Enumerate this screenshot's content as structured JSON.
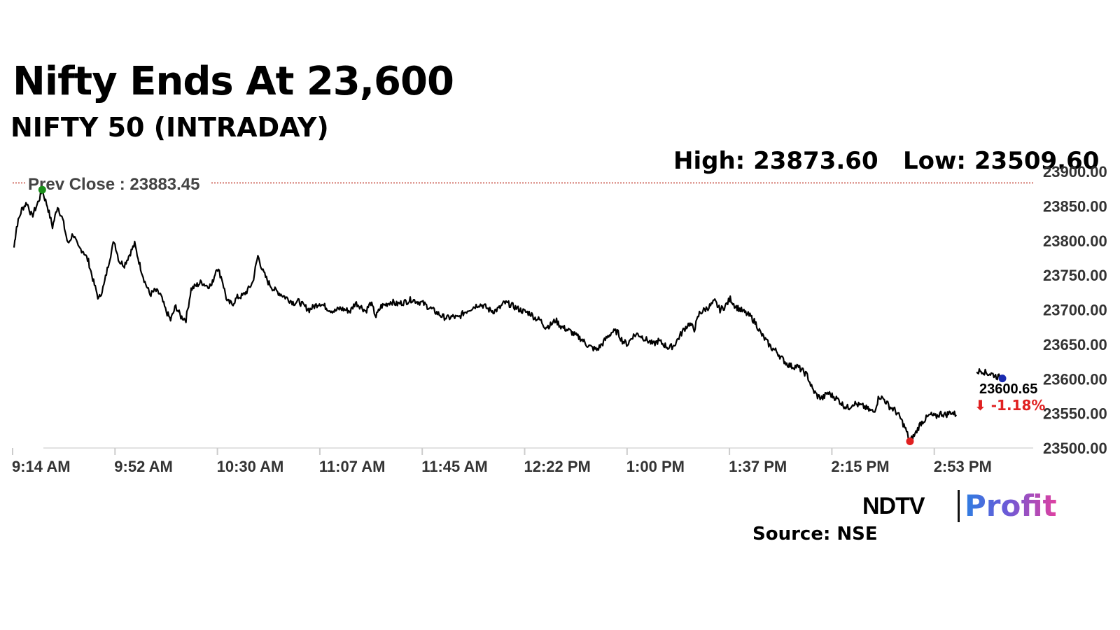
{
  "header": {
    "title": "Nifty Ends At 23,600",
    "subtitle": "NIFTY 50 (INTRADAY)",
    "high_label": "High: 23873.60",
    "low_label": "Low: 23509.60"
  },
  "footer": {
    "brand_ndtv": "NDTV",
    "brand_profit": "Profit",
    "source": "Source: NSE"
  },
  "colors": {
    "line": "#000000",
    "prev_close": "#c0392b",
    "high_marker": "#1a8f1a",
    "low_marker": "#e02020",
    "last_marker": "#1a2bb0",
    "change": "#e02020"
  },
  "chart_data": {
    "type": "line",
    "title": "NIFTY 50 (INTRADAY)",
    "x_ticks": [
      "9:14 AM",
      "9:52 AM",
      "10:30 AM",
      "11:07 AM",
      "11:45 AM",
      "12:22 PM",
      "1:00 PM",
      "1:37 PM",
      "2:15 PM",
      "2:53 PM"
    ],
    "y_ticks": [
      "23900.00",
      "23850.00",
      "23800.00",
      "23750.00",
      "23700.00",
      "23650.00",
      "23600.00",
      "23550.00",
      "23500.00"
    ],
    "ylim": [
      23500,
      23900
    ],
    "xlim_minutes_after_open": [
      0,
      397
    ],
    "y_axis_position": "right",
    "prev_close": {
      "label": "Prev Close : 23883.45",
      "value": 23883.45
    },
    "last_value_label": "23600.65",
    "change_label": "⬇ -1.18%",
    "series": [
      {
        "points": [
          [
            0,
            23790
          ],
          [
            1,
            23820
          ],
          [
            3,
            23845
          ],
          [
            5,
            23855
          ],
          [
            7,
            23835
          ],
          [
            9,
            23852
          ],
          [
            11,
            23872
          ],
          [
            13,
            23850
          ],
          [
            15,
            23820
          ],
          [
            17,
            23850
          ],
          [
            19,
            23830
          ],
          [
            21,
            23795
          ],
          [
            23,
            23810
          ],
          [
            25,
            23790
          ],
          [
            27,
            23785
          ],
          [
            29,
            23770
          ],
          [
            31,
            23740
          ],
          [
            33,
            23715
          ],
          [
            35,
            23735
          ],
          [
            37,
            23770
          ],
          [
            39,
            23800
          ],
          [
            41,
            23770
          ],
          [
            43,
            23765
          ],
          [
            45,
            23780
          ],
          [
            47,
            23795
          ],
          [
            49,
            23765
          ],
          [
            51,
            23740
          ],
          [
            53,
            23722
          ],
          [
            55,
            23728
          ],
          [
            57,
            23722
          ],
          [
            59,
            23700
          ],
          [
            61,
            23685
          ],
          [
            63,
            23705
          ],
          [
            65,
            23690
          ],
          [
            67,
            23686
          ],
          [
            69,
            23730
          ],
          [
            71,
            23735
          ],
          [
            73,
            23740
          ],
          [
            75,
            23735
          ],
          [
            77,
            23735
          ],
          [
            79,
            23762
          ],
          [
            81,
            23745
          ],
          [
            83,
            23712
          ],
          [
            85,
            23708
          ],
          [
            87,
            23718
          ],
          [
            89,
            23720
          ],
          [
            91,
            23728
          ],
          [
            93,
            23740
          ],
          [
            95,
            23778
          ],
          [
            97,
            23755
          ],
          [
            99,
            23740
          ],
          [
            101,
            23730
          ],
          [
            103,
            23725
          ],
          [
            105,
            23720
          ],
          [
            107,
            23715
          ],
          [
            109,
            23710
          ],
          [
            111,
            23712
          ],
          [
            113,
            23705
          ],
          [
            115,
            23700
          ],
          [
            117,
            23705
          ],
          [
            119,
            23710
          ],
          [
            121,
            23705
          ],
          [
            123,
            23700
          ],
          [
            125,
            23698
          ],
          [
            127,
            23702
          ],
          [
            129,
            23700
          ],
          [
            131,
            23698
          ],
          [
            133,
            23710
          ],
          [
            135,
            23705
          ],
          [
            137,
            23698
          ],
          [
            139,
            23710
          ],
          [
            141,
            23690
          ],
          [
            143,
            23705
          ],
          [
            145,
            23708
          ],
          [
            147,
            23712
          ],
          [
            149,
            23708
          ],
          [
            151,
            23710
          ],
          [
            153,
            23712
          ],
          [
            155,
            23715
          ],
          [
            157,
            23712
          ],
          [
            159,
            23710
          ],
          [
            161,
            23705
          ],
          [
            163,
            23700
          ],
          [
            165,
            23695
          ],
          [
            167,
            23690
          ],
          [
            169,
            23688
          ],
          [
            171,
            23690
          ],
          [
            173,
            23688
          ],
          [
            175,
            23695
          ],
          [
            177,
            23700
          ],
          [
            179,
            23704
          ],
          [
            181,
            23708
          ],
          [
            183,
            23706
          ],
          [
            185,
            23700
          ],
          [
            187,
            23698
          ],
          [
            189,
            23702
          ],
          [
            191,
            23710
          ],
          [
            193,
            23708
          ],
          [
            195,
            23704
          ],
          [
            197,
            23700
          ],
          [
            199,
            23697
          ],
          [
            201,
            23695
          ],
          [
            203,
            23688
          ],
          [
            205,
            23685
          ],
          [
            207,
            23675
          ],
          [
            209,
            23678
          ],
          [
            211,
            23685
          ],
          [
            213,
            23676
          ],
          [
            215,
            23672
          ],
          [
            217,
            23668
          ],
          [
            219,
            23662
          ],
          [
            221,
            23658
          ],
          [
            223,
            23650
          ],
          [
            225,
            23645
          ],
          [
            227,
            23642
          ],
          [
            229,
            23650
          ],
          [
            231,
            23660
          ],
          [
            233,
            23668
          ],
          [
            235,
            23668
          ],
          [
            237,
            23655
          ],
          [
            239,
            23650
          ],
          [
            241,
            23662
          ],
          [
            243,
            23665
          ],
          [
            245,
            23660
          ],
          [
            247,
            23655
          ],
          [
            249,
            23650
          ],
          [
            251,
            23655
          ],
          [
            253,
            23650
          ],
          [
            255,
            23645
          ],
          [
            257,
            23648
          ],
          [
            259,
            23660
          ],
          [
            261,
            23672
          ],
          [
            263,
            23680
          ],
          [
            265,
            23672
          ],
          [
            267,
            23695
          ],
          [
            269,
            23700
          ],
          [
            271,
            23705
          ],
          [
            273,
            23712
          ],
          [
            275,
            23700
          ],
          [
            277,
            23705
          ],
          [
            279,
            23716
          ],
          [
            281,
            23705
          ],
          [
            283,
            23700
          ],
          [
            285,
            23695
          ],
          [
            287,
            23690
          ],
          [
            289,
            23680
          ],
          [
            291,
            23665
          ],
          [
            293,
            23655
          ],
          [
            295,
            23645
          ],
          [
            297,
            23640
          ],
          [
            299,
            23630
          ],
          [
            301,
            23622
          ],
          [
            303,
            23618
          ],
          [
            305,
            23618
          ],
          [
            307,
            23612
          ],
          [
            309,
            23605
          ],
          [
            311,
            23585
          ],
          [
            313,
            23575
          ],
          [
            315,
            23572
          ],
          [
            317,
            23580
          ],
          [
            319,
            23575
          ],
          [
            321,
            23570
          ],
          [
            323,
            23562
          ],
          [
            325,
            23558
          ],
          [
            327,
            23565
          ],
          [
            329,
            23562
          ],
          [
            331,
            23560
          ],
          [
            333,
            23555
          ],
          [
            335,
            23552
          ],
          [
            337,
            23575
          ],
          [
            339,
            23570
          ],
          [
            341,
            23560
          ],
          [
            343,
            23555
          ],
          [
            345,
            23545
          ],
          [
            347,
            23530
          ],
          [
            349,
            23510
          ],
          [
            351,
            23520
          ],
          [
            353,
            23535
          ],
          [
            355,
            23542
          ],
          [
            357,
            23548
          ],
          [
            359,
            23545
          ],
          [
            361,
            23550
          ],
          [
            363,
            23548
          ],
          [
            365,
            23552
          ],
          [
            367,
            23548
          ]
        ],
        "points_2": [
          [
            375,
            23610
          ],
          [
            377,
            23612
          ],
          [
            379,
            23608
          ],
          [
            381,
            23607
          ],
          [
            383,
            23603
          ],
          [
            385,
            23602
          ]
        ]
      }
    ],
    "markers": [
      {
        "name": "day-high",
        "x": 11,
        "y": 23873.6,
        "color": "#1a8f1a"
      },
      {
        "name": "day-low",
        "x": 349,
        "y": 23509.6,
        "color": "#e02020"
      },
      {
        "name": "last-price",
        "x": 385,
        "y": 23600.65,
        "color": "#1a2bb0"
      }
    ]
  }
}
